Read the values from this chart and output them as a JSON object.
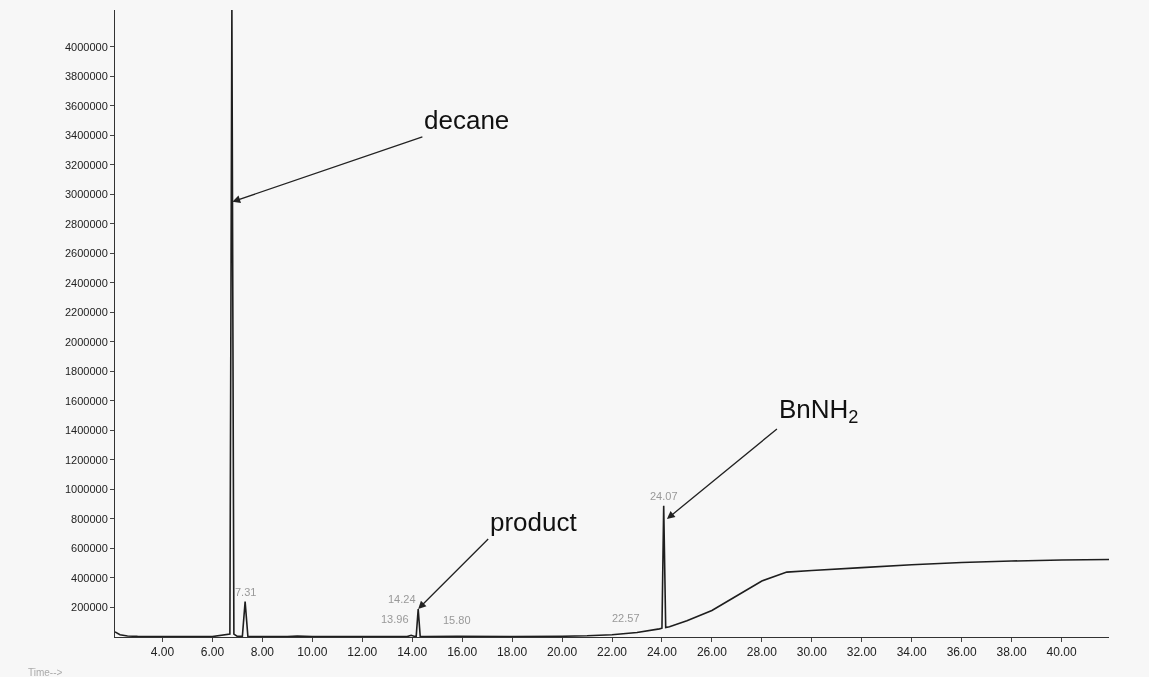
{
  "chart_data": {
    "type": "line",
    "xlabel": "Time-->",
    "x": [
      2.1,
      2.3,
      2.6,
      3.0,
      4.0,
      5.0,
      6.0,
      6.7,
      6.78,
      6.86,
      7.0,
      7.2,
      7.31,
      7.42,
      7.6,
      9.0,
      9.4,
      10.0,
      12.0,
      13.8,
      13.96,
      14.1,
      14.16,
      14.24,
      14.32,
      14.5,
      15.8,
      18.0,
      20.0,
      21.0,
      22.0,
      23.0,
      23.9,
      24.0,
      24.07,
      24.15,
      24.3,
      25.0,
      26.0,
      27.0,
      28.0,
      29.0,
      30.0,
      32.0,
      34.0,
      36.0,
      38.0,
      40.0,
      41.9
    ],
    "series": [
      {
        "color": "#1e1e1e",
        "values": [
          35000,
          15000,
          7000,
          4000,
          3000,
          3000,
          3000,
          20000,
          4250000,
          20000,
          4000,
          4000,
          240000,
          5000,
          3000,
          3000,
          6000,
          3000,
          3000,
          3000,
          12000,
          4000,
          4000,
          190000,
          5000,
          3000,
          5000,
          3000,
          5000,
          8000,
          15000,
          30000,
          55000,
          60000,
          890000,
          65000,
          70000,
          110000,
          180000,
          280000,
          380000,
          440000,
          451000,
          470000,
          490000,
          505000,
          515000,
          522000,
          525000
        ]
      }
    ],
    "xlim": [
      2.1,
      41.9
    ],
    "ylim": [
      0,
      4250000
    ],
    "xticks": [
      {
        "value": 4,
        "label": "4.00"
      },
      {
        "value": 6,
        "label": "6.00"
      },
      {
        "value": 8,
        "label": "8.00"
      },
      {
        "value": 10,
        "label": "10.00"
      },
      {
        "value": 12,
        "label": "12.00"
      },
      {
        "value": 14,
        "label": "14.00"
      },
      {
        "value": 16,
        "label": "16.00"
      },
      {
        "value": 18,
        "label": "18.00"
      },
      {
        "value": 20,
        "label": "20.00"
      },
      {
        "value": 22,
        "label": "22.00"
      },
      {
        "value": 24,
        "label": "24.00"
      },
      {
        "value": 26,
        "label": "26.00"
      },
      {
        "value": 28,
        "label": "28.00"
      },
      {
        "value": 30,
        "label": "30.00"
      },
      {
        "value": 32,
        "label": "32.00"
      },
      {
        "value": 34,
        "label": "34.00"
      },
      {
        "value": 36,
        "label": "36.00"
      },
      {
        "value": 38,
        "label": "38.00"
      },
      {
        "value": 40,
        "label": "40.00"
      }
    ],
    "yticks": [
      200000,
      400000,
      600000,
      800000,
      1000000,
      1200000,
      1400000,
      1600000,
      1800000,
      2000000,
      2200000,
      2400000,
      2600000,
      2800000,
      3000000,
      3200000,
      3400000,
      3600000,
      3800000,
      4000000
    ],
    "grid": false,
    "annotations": [
      {
        "text": "decane",
        "x": 6.8,
        "y": 2950000
      },
      {
        "text": "product",
        "x": 14.24,
        "y": 190000
      },
      {
        "text": "BnNH$_{2}$",
        "x": 24.2,
        "y": 800000
      },
      {
        "text": "7.31",
        "x": 7.31,
        "y": 240000
      },
      {
        "text": "13.96",
        "x": 13.96,
        "y": 12000
      },
      {
        "text": "14.24",
        "x": 14.24,
        "y": 190000
      },
      {
        "text": "15.80",
        "x": 15.8,
        "y": 5000
      },
      {
        "text": "22.57",
        "x": 22.57,
        "y": 20000
      },
      {
        "text": "24.07",
        "x": 24.07,
        "y": 890000
      }
    ]
  }
}
